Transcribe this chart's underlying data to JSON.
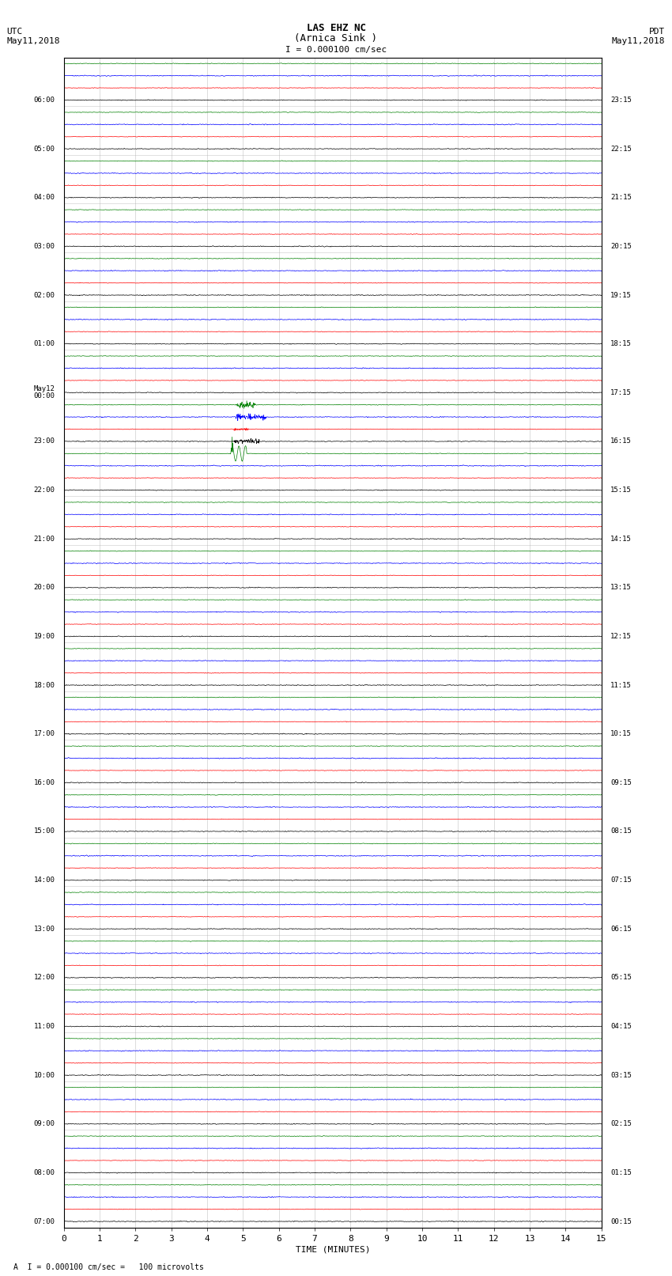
{
  "title_line1": "LAS EHZ NC",
  "title_line2": "(Arnica Sink )",
  "scale_label": "I = 0.000100 cm/sec",
  "utc_label": "UTC",
  "utc_date": "May11,2018",
  "pdt_label": "PDT",
  "pdt_date": "May11,2018",
  "footer_label": "A  I = 0.000100 cm/sec =   100 microvolts",
  "xlabel": "TIME (MINUTES)",
  "x_ticks": [
    0,
    1,
    2,
    3,
    4,
    5,
    6,
    7,
    8,
    9,
    10,
    11,
    12,
    13,
    14,
    15
  ],
  "time_minutes": 15,
  "background_color": "#ffffff",
  "trace_colors": [
    "black",
    "red",
    "blue",
    "green"
  ],
  "utc_times": [
    "07:00",
    "",
    "",
    "",
    "08:00",
    "",
    "",
    "",
    "09:00",
    "",
    "",
    "",
    "10:00",
    "",
    "",
    "",
    "11:00",
    "",
    "",
    "",
    "12:00",
    "",
    "",
    "",
    "13:00",
    "",
    "",
    "",
    "14:00",
    "",
    "",
    "",
    "15:00",
    "",
    "",
    "",
    "16:00",
    "",
    "",
    "",
    "17:00",
    "",
    "",
    "",
    "18:00",
    "",
    "",
    "",
    "19:00",
    "",
    "",
    "",
    "20:00",
    "",
    "",
    "",
    "21:00",
    "",
    "",
    "",
    "22:00",
    "",
    "",
    "",
    "23:00",
    "",
    "",
    "",
    "May12\n00:00",
    "",
    "",
    "",
    "01:00",
    "",
    "",
    "",
    "02:00",
    "",
    "",
    "",
    "03:00",
    "",
    "",
    "",
    "04:00",
    "",
    "",
    "",
    "05:00",
    "",
    "",
    "",
    "06:00",
    "",
    "",
    ""
  ],
  "pdt_times": [
    "00:15",
    "",
    "",
    "",
    "01:15",
    "",
    "",
    "",
    "02:15",
    "",
    "",
    "",
    "03:15",
    "",
    "",
    "",
    "04:15",
    "",
    "",
    "",
    "05:15",
    "",
    "",
    "",
    "06:15",
    "",
    "",
    "",
    "07:15",
    "",
    "",
    "",
    "08:15",
    "",
    "",
    "",
    "09:15",
    "",
    "",
    "",
    "10:15",
    "",
    "",
    "",
    "11:15",
    "",
    "",
    "",
    "12:15",
    "",
    "",
    "",
    "13:15",
    "",
    "",
    "",
    "14:15",
    "",
    "",
    "",
    "15:15",
    "",
    "",
    "",
    "16:15",
    "",
    "",
    "",
    "17:15",
    "",
    "",
    "",
    "18:15",
    "",
    "",
    "",
    "19:15",
    "",
    "",
    "",
    "20:15",
    "",
    "",
    "",
    "21:15",
    "",
    "",
    "",
    "22:15",
    "",
    "",
    "",
    "23:15",
    "",
    "",
    ""
  ],
  "n_rows": 96,
  "noise_scale": 0.025,
  "grid_color": "#aaaaaa",
  "grid_linewidth": 0.4,
  "trace_linewidth": 0.5,
  "event_earthquake_row": 64,
  "event_earthquake_minute": 4.7,
  "event_blue_row": 53,
  "event_blue_minute": 4.8,
  "event_blue2_row": 69,
  "event_blue2_minute": 4.9
}
